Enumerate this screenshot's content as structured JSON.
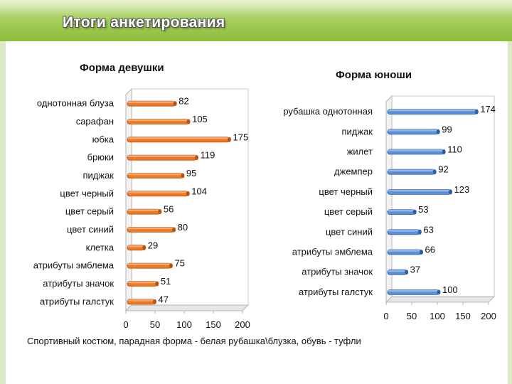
{
  "slide": {
    "title": "Итоги анкетирования",
    "footnote": "Спортивный костюм, парадная форма - белая рубашка\\блузка, обувь - туфли"
  },
  "colors": {
    "girls_bar": "#f07a24",
    "boys_bar": "#5b8fd8",
    "header_green": "#a8d060"
  },
  "chart_data": [
    {
      "type": "bar",
      "orientation": "horizontal",
      "title": "Форма девушки",
      "categories": [
        "однотонная блуза",
        "сарафан",
        "юбка",
        "брюки",
        "пиджак",
        "цвет черный",
        "цвет серый",
        "цвет синий",
        "клетка",
        "атрибуты эмблема",
        "атрибуты значок",
        "атрибуты галстук"
      ],
      "values": [
        82,
        105,
        175,
        119,
        95,
        104,
        56,
        80,
        29,
        75,
        51,
        47
      ],
      "xlim": [
        0,
        200
      ],
      "xticks": [
        0,
        50,
        100,
        150,
        200
      ],
      "grid": false
    },
    {
      "type": "bar",
      "orientation": "horizontal",
      "title": "Форма юноши",
      "categories": [
        "рубашка однотонная",
        "пиджак",
        "жилет",
        "джемпер",
        "цвет черный",
        "цвет серый",
        "цвет синий",
        "атрибуты эмблема",
        "атрибуты значок",
        "атрибуты галстук"
      ],
      "values": [
        174,
        99,
        110,
        92,
        123,
        53,
        63,
        66,
        37,
        100
      ],
      "xlim": [
        0,
        200
      ],
      "xticks": [
        0,
        50,
        100,
        150,
        200
      ],
      "grid": false
    }
  ]
}
